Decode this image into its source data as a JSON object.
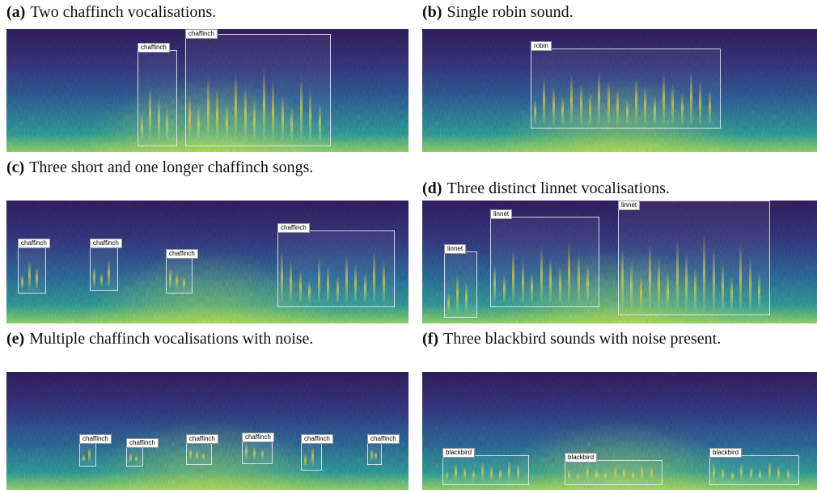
{
  "panels": [
    {
      "label": "(a)",
      "caption": "Two chaffinch vocalisations.",
      "boxes": [
        "chaffinch",
        "chaffinch"
      ]
    },
    {
      "label": "(b)",
      "caption": "Single robin sound.",
      "boxes": [
        "robin"
      ]
    },
    {
      "label": "(c)",
      "caption": "Three short and one longer chaffinch songs.",
      "boxes": [
        "chaffinch",
        "chaffinch",
        "chaffinch",
        "chaffinch"
      ]
    },
    {
      "label": "(d)",
      "caption": "Three distinct linnet vocalisations.",
      "boxes": [
        "linnet",
        "linnet",
        "linnet"
      ]
    },
    {
      "label": "(e)",
      "caption": "Multiple chaffinch vocalisations with noise.",
      "boxes": [
        "chaffinch",
        "chaffinch",
        "chaffinch",
        "chaffinch",
        "chaffinch",
        "chaffinch"
      ]
    },
    {
      "label": "(f)",
      "caption": "Three blackbird sounds with noise present.",
      "boxes": [
        "blackbird",
        "blackbird",
        "blackbird"
      ]
    }
  ]
}
